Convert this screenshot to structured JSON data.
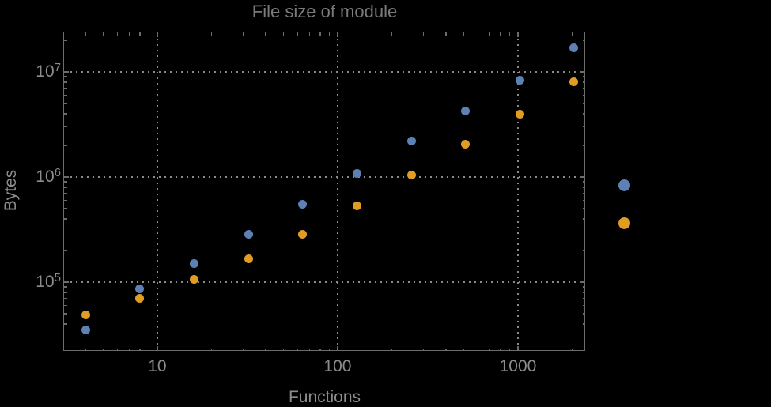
{
  "title": "File size of module",
  "colors": {
    "background": "#000000",
    "frame": "#6c6c6c",
    "grid": "#8a8a8a",
    "tick_label": "#8c8c8c",
    "title": "#7a7a7a",
    "series1_blue": "#5e81b5",
    "series2_orange": "#e19c24"
  },
  "chart_data": {
    "type": "scatter",
    "title": "File size of module",
    "xlabel": "Functions",
    "ylabel": "Bytes",
    "x_scale": "log",
    "y_scale": "log",
    "xlim": [
      3.04,
      2360
    ],
    "ylim": [
      22200,
      23760000
    ],
    "grid": "dotted gridlines at decades only",
    "x_major_ticks": [
      10,
      100,
      1000
    ],
    "x_tick_labels": [
      "10",
      "100",
      "1000"
    ],
    "y_major_ticks": [
      100000,
      1000000,
      10000000
    ],
    "y_tick_labels": [
      {
        "base": "10",
        "exp": "5"
      },
      {
        "base": "10",
        "exp": "6"
      },
      {
        "base": "10",
        "exp": "7"
      }
    ],
    "x": [
      4,
      8,
      16,
      32,
      64,
      128,
      256,
      512,
      1024,
      2048
    ],
    "series": [
      {
        "name": "series-1-blue",
        "color": "#5e81b5",
        "values": [
          35000,
          86000,
          151000,
          284000,
          548000,
          1090000,
          2180000,
          4280000,
          8400000,
          16900000
        ]
      },
      {
        "name": "series-2-orange",
        "color": "#e19c24",
        "values": [
          49000,
          70000,
          107000,
          166000,
          284000,
          530000,
          1040000,
          2050000,
          3970000,
          8080000
        ]
      }
    ],
    "legend": {
      "position": "right-of-frame",
      "note": "point markers only; no visible label text",
      "markers": [
        {
          "series": "series-1-blue",
          "color": "#5e81b5"
        },
        {
          "series": "series-2-orange",
          "color": "#e19c24"
        }
      ]
    }
  }
}
